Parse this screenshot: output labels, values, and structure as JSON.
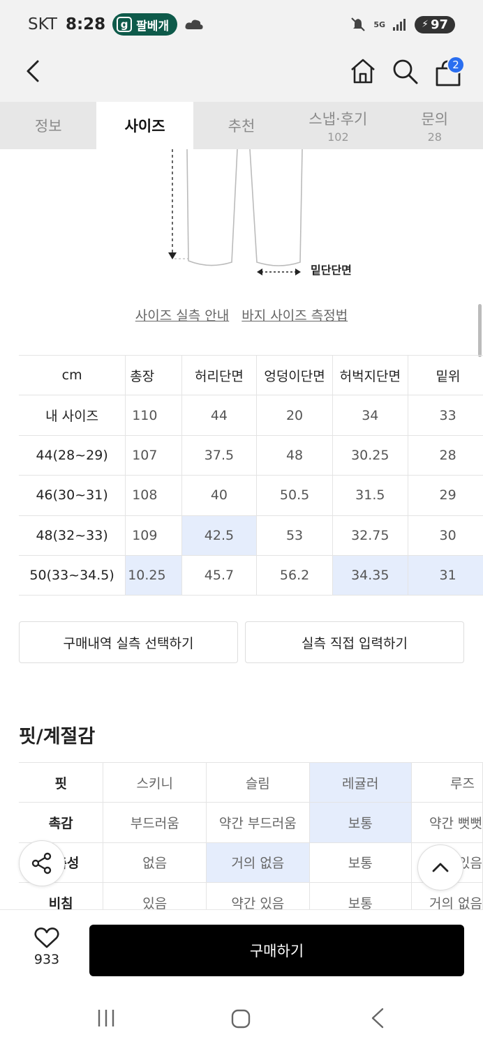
{
  "status_bar": {
    "carrier": "SKT",
    "time": "8:28",
    "app_badge": "팔베개",
    "app_badge_letter": "g",
    "network": "5G",
    "battery": "97"
  },
  "header": {
    "cart_count": "2"
  },
  "tabs": [
    {
      "label": "정보",
      "count": ""
    },
    {
      "label": "사이즈",
      "count": ""
    },
    {
      "label": "추천",
      "count": ""
    },
    {
      "label": "스냅·후기",
      "count": "102"
    },
    {
      "label": "문의",
      "count": "28"
    }
  ],
  "diagram": {
    "hem_label": "밑단단면"
  },
  "size_links": {
    "guide": "사이즈 실측 안내",
    "measure": "바지 사이즈 측정법"
  },
  "size_table": {
    "headers": [
      "cm",
      "총장",
      "허리단면",
      "엉덩이단면",
      "허벅지단면",
      "밑위"
    ],
    "rows": [
      [
        "내 사이즈",
        "110",
        "44",
        "20",
        "34",
        "33"
      ],
      [
        "44(28~29)",
        "107",
        "37.5",
        "48",
        "30.25",
        "28"
      ],
      [
        "46(30~31)",
        "108",
        "40",
        "50.5",
        "31.5",
        "29"
      ],
      [
        "48(32~33)",
        "109",
        "42.5",
        "53",
        "32.75",
        "30"
      ],
      [
        "50(33~34.5)",
        "10.25",
        "45.7",
        "56.2",
        "34.35",
        "31"
      ]
    ]
  },
  "actions": {
    "purchase_history": "구매내역 실측 선택하기",
    "manual_input": "실측 직접 입력하기"
  },
  "fit_section": {
    "title": "핏/계절감",
    "rows": [
      [
        "핏",
        "스키니",
        "슬림",
        "레귤러",
        "루즈"
      ],
      [
        "촉감",
        "부드러움",
        "약간 부드러움",
        "보통",
        "약간 뻣뻣"
      ],
      [
        "신축성",
        "없음",
        "거의 없음",
        "보통",
        "약간 있음"
      ],
      [
        "비침",
        "있음",
        "약간 있음",
        "보통",
        "거의 없음"
      ]
    ]
  },
  "bottom_bar": {
    "like_count": "933",
    "buy_label": "구매하기"
  }
}
